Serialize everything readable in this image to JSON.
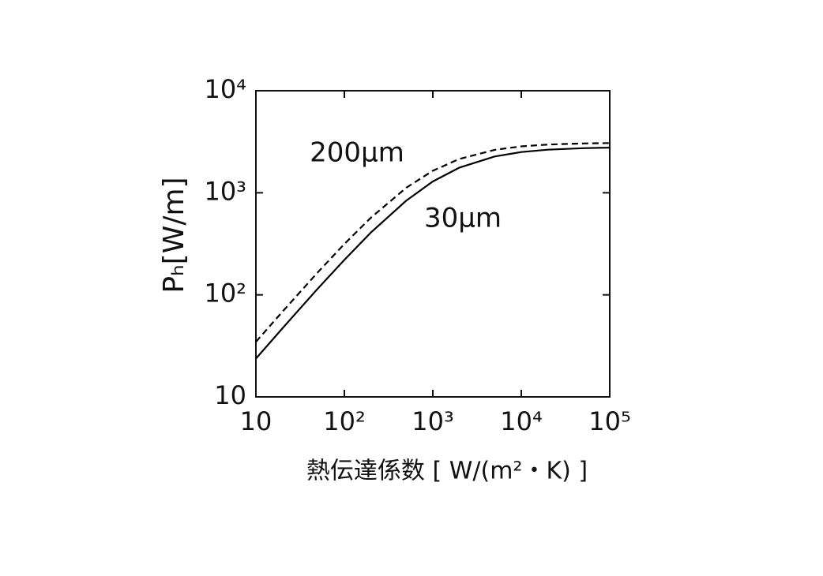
{
  "chart_data": {
    "type": "line",
    "xlabel": "熱伝達係数 [ W/(m²・K) ]",
    "ylabel": "Pₕ[W/m]",
    "xscale": "log",
    "yscale": "log",
    "xlim": [
      10,
      100000
    ],
    "ylim": [
      10,
      10000
    ],
    "xticks": [
      10,
      {
        "value": 100,
        "label": "10²"
      },
      {
        "value": 1000,
        "label": "10³"
      },
      {
        "value": 10000,
        "label": "10⁴"
      },
      {
        "value": 100000,
        "label": "10⁵"
      }
    ],
    "yticks": [
      10,
      {
        "value": 100,
        "label": "10²"
      },
      {
        "value": 1000,
        "label": "10³"
      },
      {
        "value": 10000,
        "label": "10⁴"
      }
    ],
    "x": [
      10,
      20,
      50,
      100,
      200,
      500,
      1000,
      2000,
      5000,
      10000,
      20000,
      50000,
      100000
    ],
    "series": [
      {
        "name": "200μm",
        "color": "#000000",
        "dashed": true,
        "values": [
          34.6,
          68.5,
          166,
          315,
          571,
          1119,
          1645,
          2149,
          2634,
          2848,
          2969,
          3046,
          3073
        ]
      },
      {
        "name": "30μm",
        "color": "#000000",
        "dashed": false,
        "values": [
          23.7,
          47.1,
          115,
          220,
          409,
          838,
          1290,
          1767,
          2269,
          2507,
          2645,
          2736,
          2768
        ]
      }
    ]
  }
}
